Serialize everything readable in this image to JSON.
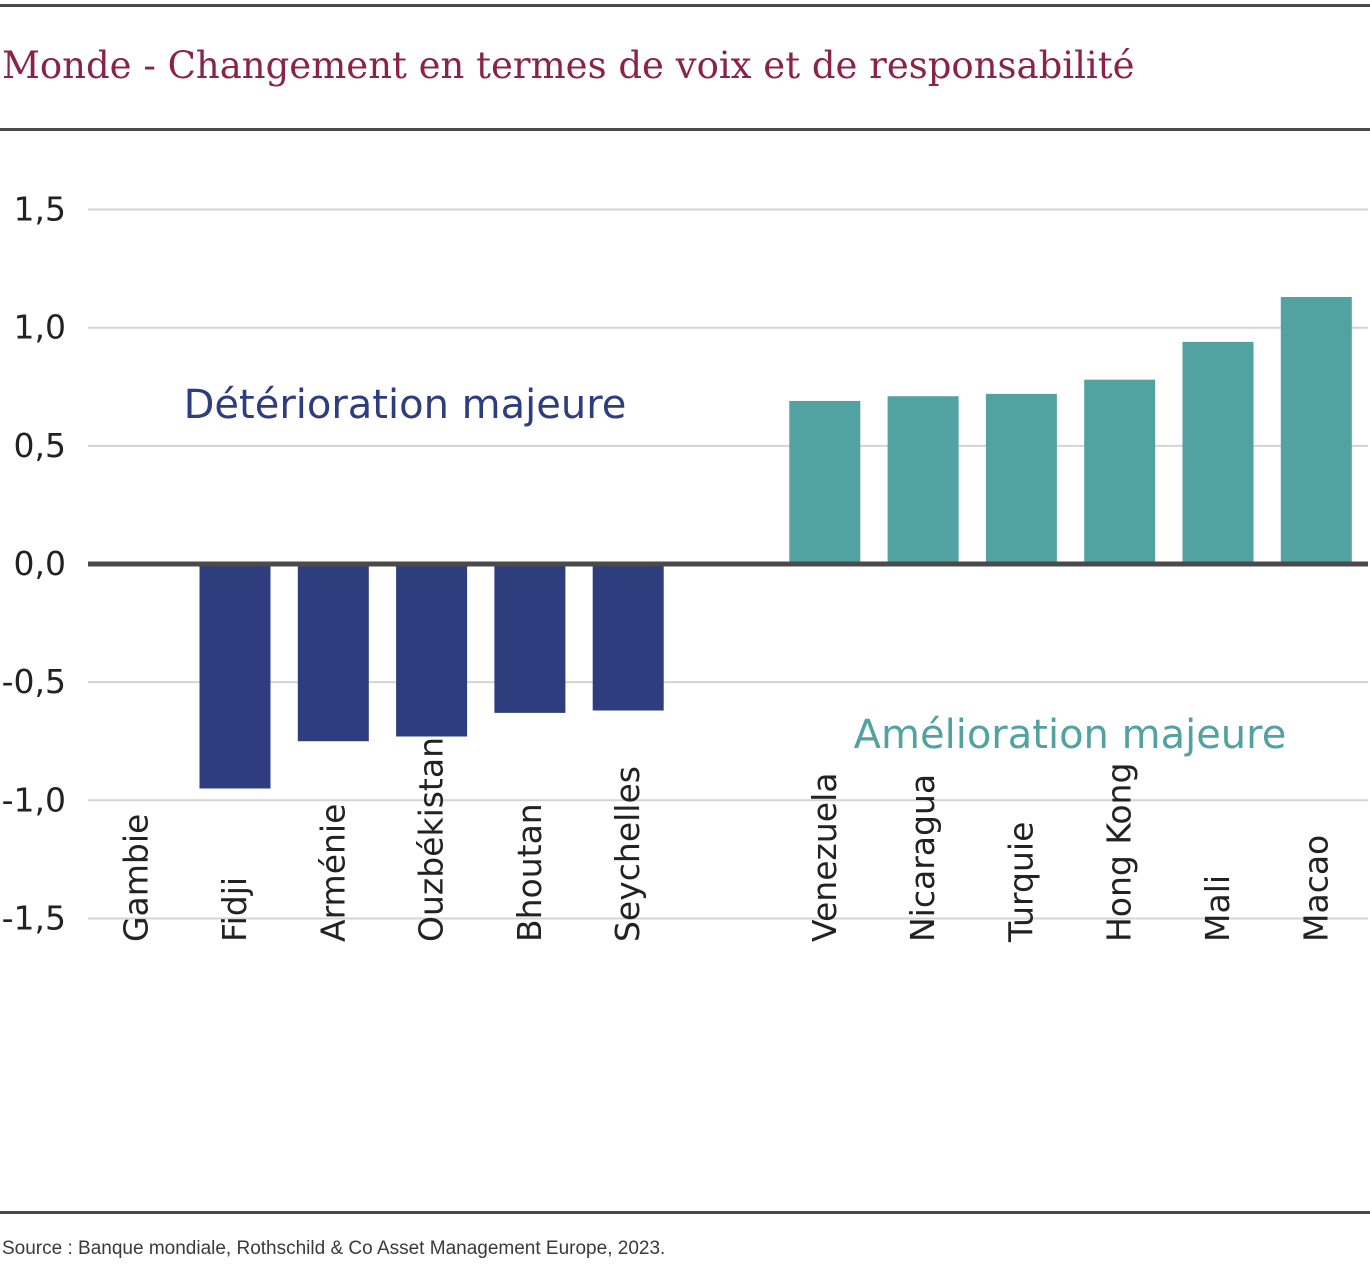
{
  "title": "Monde - Changement en termes de voix et de responsabilité",
  "source": "Source : Banque mondiale,  Rothschild & Co Asset Management Europe, 2023.",
  "colors": {
    "negative": "#2e3d7e",
    "positive": "#52a2a1",
    "title": "#8b2347",
    "grid": "#d4d4d4",
    "axis": "#4a4a4a"
  },
  "chart_data": {
    "type": "bar",
    "categories": [
      "Gambie",
      "Fidji",
      "Arménie",
      "Ouzbékistan",
      "Bhoutan",
      "Seychelles",
      "",
      "Venezuela",
      "Nicaragua",
      "Turquie",
      "Hong Kong",
      "Mali",
      "Macao"
    ],
    "values": [
      0.0,
      -0.95,
      -0.75,
      -0.73,
      -0.63,
      -0.62,
      null,
      0.69,
      0.71,
      0.72,
      0.78,
      0.94,
      1.13
    ],
    "ylim": [
      -1.5,
      1.5
    ],
    "yticks": [
      1.5,
      1.0,
      0.5,
      0.0,
      -0.5,
      -1.0,
      -1.5
    ],
    "ytick_labels": [
      "1,5",
      "1,0",
      "0,5",
      "0,0",
      "-0,5",
      "-1,0",
      "-1,5"
    ],
    "grid": true,
    "annotations": [
      {
        "text": "Détérioration majeure",
        "color": "#2e3d7e"
      },
      {
        "text": "Amélioration majeure",
        "color": "#52a2a1"
      }
    ]
  }
}
